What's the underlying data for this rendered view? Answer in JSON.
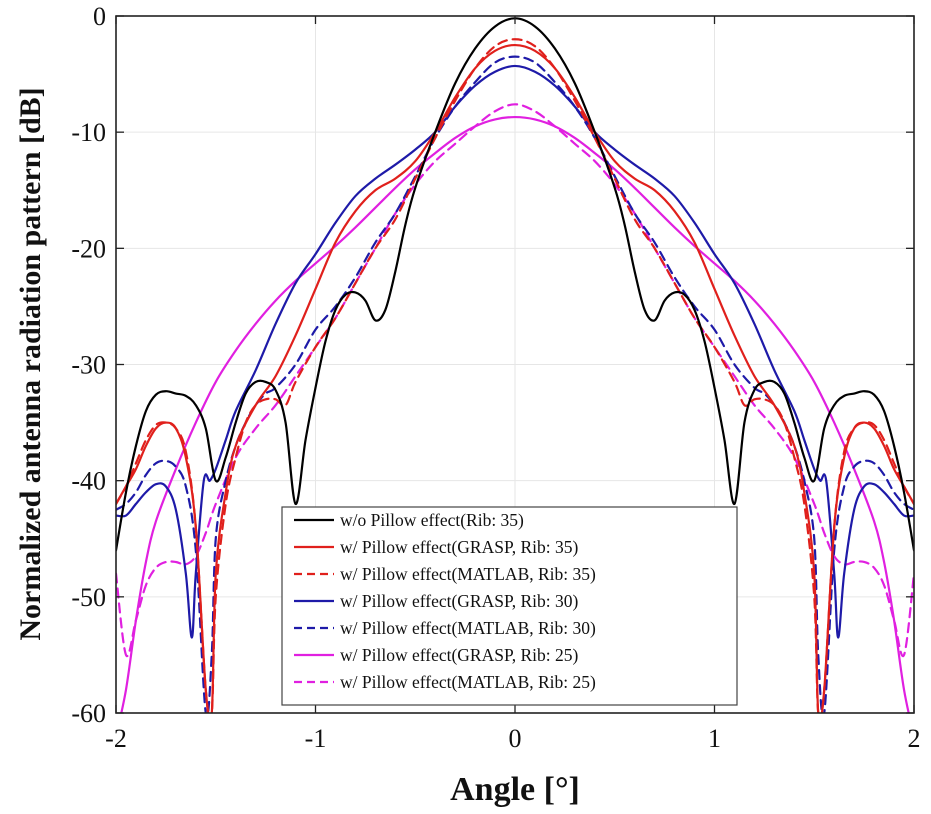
{
  "chart_data": {
    "type": "line",
    "xlabel": "Angle [°]",
    "ylabel": "Normalized antenna radiation pattern [dB]",
    "xlim": [
      -2,
      2
    ],
    "ylim": [
      -60,
      0
    ],
    "xticks": [
      -2,
      -1,
      0,
      1,
      2
    ],
    "yticks": [
      0,
      -10,
      -20,
      -30,
      -40,
      -50,
      -60
    ],
    "xtick_labels": [
      "-2",
      "-1",
      "0",
      "1",
      "2"
    ],
    "ytick_labels": [
      "0",
      "-10",
      "-20",
      "-30",
      "-40",
      "-50",
      "-60"
    ],
    "grid": true,
    "legend_position": "bottom-center",
    "series": [
      {
        "name": "w/o Pillow effect(Rib: 35)",
        "color": "#000000",
        "dash": "solid",
        "x": [
          0,
          0.1,
          0.2,
          0.3,
          0.4,
          0.5,
          0.55,
          0.6,
          0.65,
          0.7,
          0.75,
          0.8,
          0.85,
          0.9,
          0.95,
          1.0,
          1.05,
          1.1,
          1.15,
          1.2,
          1.25,
          1.3,
          1.35,
          1.4,
          1.45,
          1.5,
          1.55,
          1.6,
          1.65,
          1.7,
          1.75,
          1.8,
          1.85,
          1.9,
          1.95,
          2.0
        ],
        "y": [
          -0.2,
          -0.9,
          -2.8,
          -5.8,
          -10.0,
          -14.8,
          -18.0,
          -22.0,
          -25.3,
          -26.2,
          -24.5,
          -23.8,
          -24.0,
          -25.3,
          -28.0,
          -32.0,
          -36.5,
          -42.0,
          -35.0,
          -32.2,
          -31.5,
          -31.5,
          -32.5,
          -35.0,
          -38.0,
          -40.0,
          -35.5,
          -33.5,
          -32.7,
          -32.5,
          -32.3,
          -32.6,
          -34.0,
          -37.0,
          -41.0,
          -46.0
        ]
      },
      {
        "name": "w/ Pillow effect(GRASP, Rib: 35)",
        "color": "#e0201c",
        "dash": "solid",
        "x": [
          0,
          0.1,
          0.2,
          0.3,
          0.4,
          0.5,
          0.6,
          0.7,
          0.8,
          0.9,
          1.0,
          1.1,
          1.2,
          1.3,
          1.4,
          1.45,
          1.5,
          1.52,
          1.55,
          1.6,
          1.65,
          1.7,
          1.75,
          1.8,
          1.85,
          1.9,
          1.95,
          2.0
        ],
        "y": [
          -2.5,
          -3.0,
          -4.5,
          -7.0,
          -10.0,
          -12.5,
          -14.0,
          -15.0,
          -16.8,
          -19.5,
          -23.5,
          -27.5,
          -31.0,
          -33.5,
          -37.0,
          -41.0,
          -48.0,
          -60.0,
          -58.0,
          -44.0,
          -38.0,
          -35.5,
          -35.0,
          -35.5,
          -37.0,
          -39.0,
          -40.5,
          -42.0
        ]
      },
      {
        "name": "w/ Pillow effect(MATLAB, Rib: 35)",
        "color": "#e0201c",
        "dash": "dashed",
        "x": [
          0,
          0.1,
          0.2,
          0.3,
          0.4,
          0.5,
          0.6,
          0.7,
          0.8,
          0.9,
          1.0,
          1.1,
          1.15,
          1.2,
          1.25,
          1.3,
          1.35,
          1.4,
          1.45,
          1.5,
          1.52,
          1.55,
          1.6,
          1.65,
          1.7,
          1.75,
          1.8,
          1.85,
          1.9,
          1.95,
          2.0
        ],
        "y": [
          -2.0,
          -2.6,
          -4.5,
          -7.3,
          -10.5,
          -14.0,
          -17.5,
          -20.0,
          -23.0,
          -26.0,
          -28.5,
          -31.5,
          -33.5,
          -33.0,
          -33.0,
          -33.5,
          -35.0,
          -38.0,
          -42.0,
          -50.0,
          -60.0,
          -58.0,
          -44.0,
          -37.5,
          -35.5,
          -35.0,
          -35.2,
          -36.5,
          -38.5,
          -40.5,
          -42.0
        ]
      },
      {
        "name": "w/ Pillow effect(GRASP, Rib: 30)",
        "color": "#1e1aa8",
        "dash": "solid",
        "x": [
          0,
          0.1,
          0.2,
          0.3,
          0.4,
          0.5,
          0.6,
          0.7,
          0.8,
          0.9,
          1.0,
          1.1,
          1.2,
          1.3,
          1.4,
          1.45,
          1.5,
          1.53,
          1.56,
          1.6,
          1.62,
          1.65,
          1.7,
          1.75,
          1.8,
          1.85,
          1.9,
          1.95,
          2.0
        ],
        "y": [
          -4.3,
          -4.8,
          -6.0,
          -7.8,
          -10.0,
          -11.5,
          -12.8,
          -14.0,
          -15.5,
          -17.8,
          -20.5,
          -23.0,
          -26.5,
          -30.5,
          -34.0,
          -36.5,
          -39.0,
          -40.0,
          -40.0,
          -48.0,
          -53.5,
          -48.0,
          -42.5,
          -40.5,
          -40.3,
          -41.0,
          -42.0,
          -43.0,
          -43.0
        ]
      },
      {
        "name": "w/ Pillow effect(MATLAB, Rib: 30)",
        "color": "#1e1aa8",
        "dash": "dashed",
        "x": [
          0,
          0.1,
          0.2,
          0.3,
          0.4,
          0.5,
          0.6,
          0.7,
          0.8,
          0.9,
          1.0,
          1.1,
          1.2,
          1.25,
          1.3,
          1.35,
          1.4,
          1.45,
          1.5,
          1.52,
          1.55,
          1.6,
          1.65,
          1.7,
          1.75,
          1.8,
          1.85,
          1.9,
          1.95,
          2.0
        ],
        "y": [
          -3.5,
          -4.0,
          -5.7,
          -7.8,
          -10.5,
          -13.8,
          -17.0,
          -19.5,
          -22.5,
          -25.0,
          -27.0,
          -30.0,
          -32.0,
          -32.5,
          -33.5,
          -35.0,
          -37.0,
          -40.0,
          -45.0,
          -55.0,
          -60.0,
          -46.0,
          -40.5,
          -38.8,
          -38.3,
          -38.5,
          -39.5,
          -41.0,
          -42.0,
          -42.5
        ]
      },
      {
        "name": "w/ Pillow effect(GRASP, Rib: 25)",
        "color": "#e020e0",
        "dash": "solid",
        "x": [
          0,
          0.1,
          0.2,
          0.3,
          0.4,
          0.5,
          0.6,
          0.7,
          0.8,
          0.9,
          1.0,
          1.1,
          1.2,
          1.3,
          1.4,
          1.5,
          1.6,
          1.7,
          1.8,
          1.85,
          1.9,
          1.95,
          2.0
        ],
        "y": [
          -8.7,
          -8.9,
          -9.5,
          -10.5,
          -11.8,
          -13.2,
          -14.8,
          -16.5,
          -18.2,
          -19.8,
          -21.3,
          -22.8,
          -24.5,
          -26.5,
          -28.8,
          -31.5,
          -35.0,
          -39.0,
          -43.5,
          -47.0,
          -52.0,
          -58.0,
          -62.0
        ]
      },
      {
        "name": "w/ Pillow effect(MATLAB, Rib: 25)",
        "color": "#e020e0",
        "dash": "dashed",
        "x": [
          0,
          0.1,
          0.2,
          0.3,
          0.4,
          0.5,
          0.6,
          0.7,
          0.8,
          0.9,
          1.0,
          1.1,
          1.2,
          1.3,
          1.4,
          1.5,
          1.55,
          1.6,
          1.65,
          1.7,
          1.75,
          1.8,
          1.85,
          1.9,
          1.95,
          2.0
        ],
        "y": [
          -7.6,
          -8.2,
          -9.5,
          -11.0,
          -12.5,
          -14.5,
          -17.0,
          -20.0,
          -23.0,
          -26.0,
          -28.5,
          -31.0,
          -33.5,
          -35.5,
          -38.0,
          -42.0,
          -44.5,
          -46.5,
          -47.2,
          -47.0,
          -47.0,
          -47.5,
          -49.0,
          -52.0,
          -55.0,
          -48.0
        ]
      }
    ]
  }
}
